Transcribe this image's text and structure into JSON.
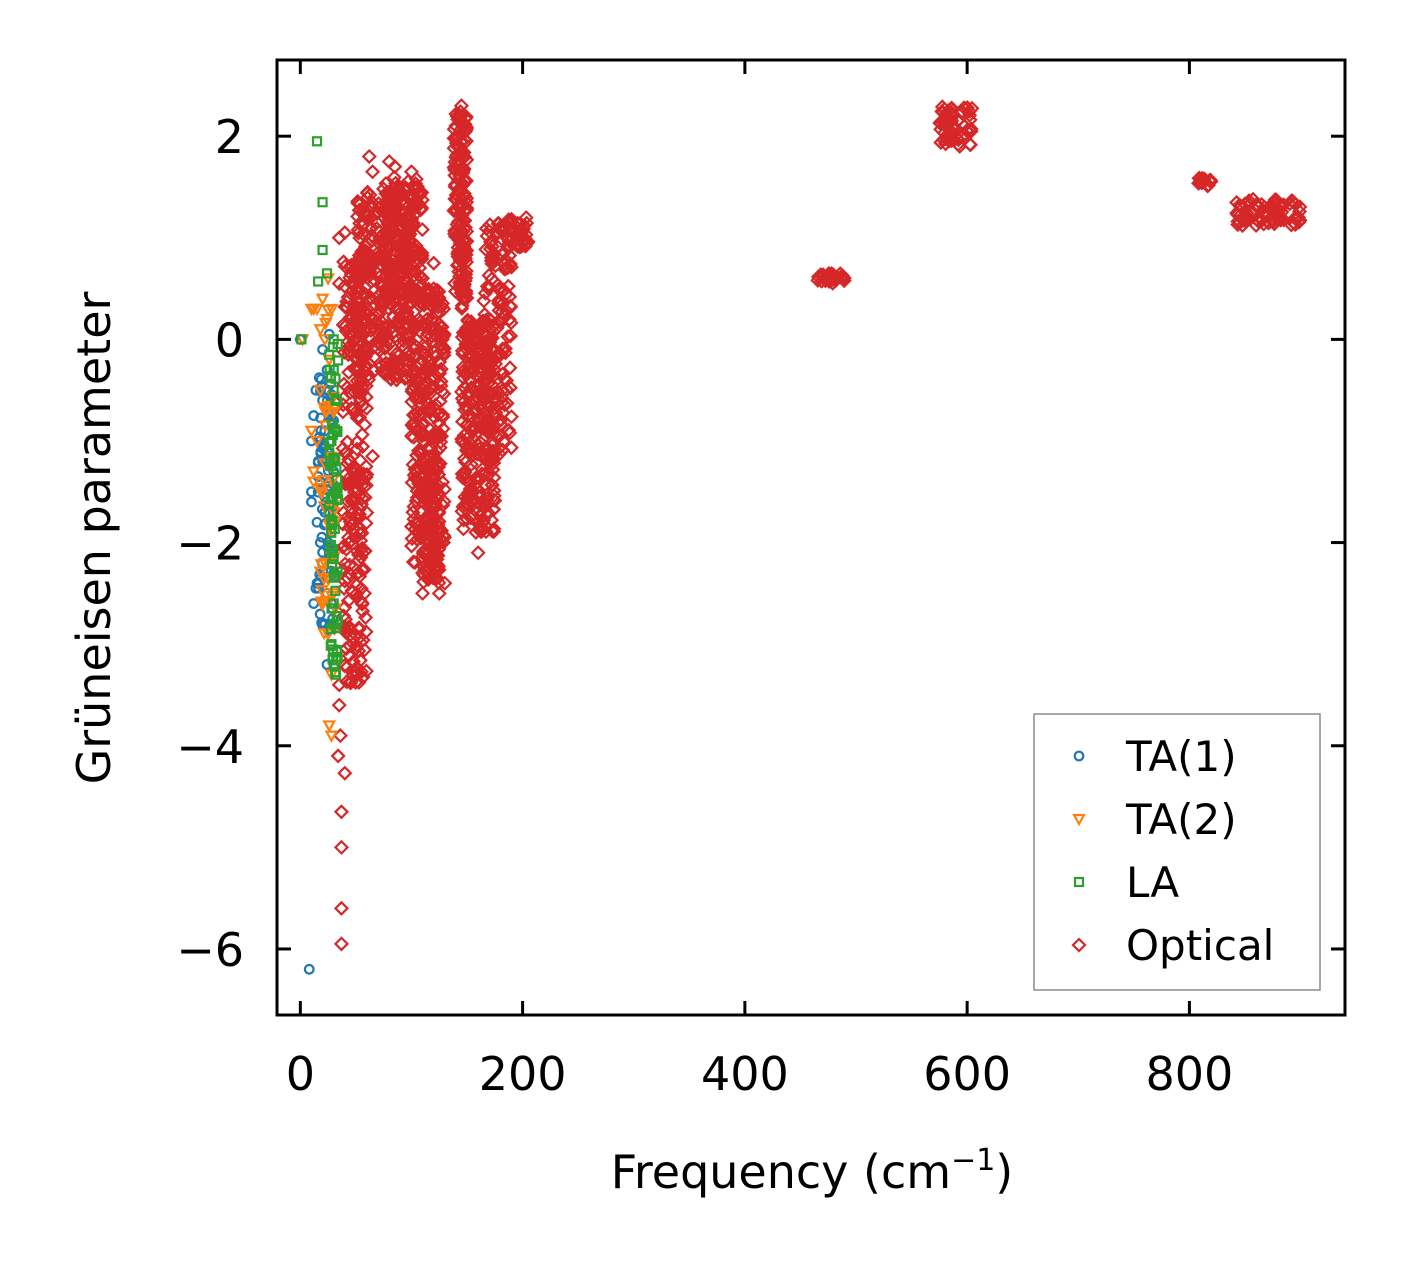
{
  "chart_data": {
    "type": "scatter",
    "xlabel": "Frequency (cm",
    "xlabel_sup": "−1",
    "xlabel_close": ")",
    "ylabel": "Grüneisen parameter",
    "xlim": [
      -21,
      940
    ],
    "ylim": [
      -6.65,
      2.75
    ],
    "xticks": [
      0,
      200,
      400,
      600,
      800
    ],
    "xtick_labels": [
      "0",
      "200",
      "400",
      "600",
      "800"
    ],
    "yticks": [
      2,
      0,
      -2,
      -4,
      -6
    ],
    "ytick_labels": [
      "2",
      "0",
      "−2",
      "−4",
      "−6"
    ],
    "legend_position": "lower-right",
    "series": [
      {
        "name": "TA(1)",
        "label": "TA(1)",
        "marker": "circle",
        "color": "#1f77b4",
        "points": [
          [
            0,
            0
          ],
          [
            8,
            -6.2
          ],
          [
            10,
            -1.5
          ],
          [
            10,
            -1.6
          ],
          [
            12,
            -2.6
          ],
          [
            12,
            -0.75
          ],
          [
            10,
            -1.0
          ],
          [
            14,
            -0.5
          ],
          [
            15,
            -1.8
          ],
          [
            15,
            -2.4
          ],
          [
            18,
            -1.0
          ],
          [
            18,
            -1.4
          ],
          [
            18,
            -2.0
          ],
          [
            20,
            -0.1
          ],
          [
            20,
            -0.6
          ],
          [
            20,
            -1.2
          ],
          [
            20,
            -2.2
          ],
          [
            22,
            -0.9
          ],
          [
            22,
            -1.7
          ],
          [
            22,
            -2.8
          ],
          [
            24,
            -0.3
          ],
          [
            24,
            -1.1
          ],
          [
            24,
            -2.5
          ],
          [
            24,
            -3.2
          ],
          [
            26,
            0.05
          ],
          [
            26,
            -0.7
          ],
          [
            26,
            -1.4
          ],
          [
            26,
            -2.1
          ],
          [
            28,
            -1.9
          ],
          [
            28,
            -2.6
          ],
          [
            30,
            -0.8
          ],
          [
            30,
            -1.3
          ],
          [
            30,
            -2.3
          ],
          [
            14,
            -2.45
          ],
          [
            16,
            -1.35
          ],
          [
            22,
            -1.55
          ],
          [
            25,
            -2.0
          ],
          [
            27,
            -1.0
          ]
        ],
        "bands": [
          {
            "x": [
              16,
              30
            ],
            "y": [
              -2.9,
              -0.3
            ],
            "n": 60
          }
        ]
      },
      {
        "name": "TA(2)",
        "label": "TA(2)",
        "marker": "triangle-down",
        "color": "#ff7f0e",
        "points": [
          [
            2,
            0
          ],
          [
            10,
            0.3
          ],
          [
            12,
            0.3
          ],
          [
            15,
            0.3
          ],
          [
            18,
            0.1
          ],
          [
            20,
            0.4
          ],
          [
            22,
            0.0
          ],
          [
            24,
            0.2
          ],
          [
            25,
            0.6
          ],
          [
            26,
            -0.2
          ],
          [
            10,
            -0.9
          ],
          [
            12,
            -1.3
          ],
          [
            12,
            -1.4
          ],
          [
            15,
            -1.0
          ],
          [
            20,
            -1.5
          ],
          [
            22,
            -2.2
          ],
          [
            25,
            -2.9
          ],
          [
            26,
            -3.8
          ],
          [
            28,
            -3.9
          ],
          [
            28,
            -3.3
          ],
          [
            30,
            -1.7
          ],
          [
            30,
            -2.5
          ],
          [
            18,
            -0.5
          ],
          [
            24,
            -0.7
          ]
        ],
        "bands": [
          {
            "x": [
              18,
              32
            ],
            "y": [
              -3.0,
              0.3
            ],
            "n": 40
          }
        ]
      },
      {
        "name": "LA",
        "label": "LA",
        "marker": "square",
        "color": "#2ca02c",
        "points": [
          [
            1,
            0
          ],
          [
            15,
            1.95
          ],
          [
            20,
            1.35
          ],
          [
            20,
            0.88
          ],
          [
            16,
            0.57
          ],
          [
            24,
            0.65
          ],
          [
            30,
            0.0
          ],
          [
            30,
            -0.3
          ],
          [
            32,
            -0.6
          ],
          [
            28,
            -1.0
          ],
          [
            30,
            -1.2
          ],
          [
            32,
            -1.5
          ],
          [
            28,
            -2.1
          ],
          [
            30,
            -2.6
          ],
          [
            30,
            -2.8
          ],
          [
            28,
            -3.0
          ],
          [
            30,
            -3.2
          ],
          [
            32,
            -3.3
          ],
          [
            26,
            -0.15
          ],
          [
            30,
            -0.5
          ]
        ],
        "bands": [
          {
            "x": [
              26,
              34
            ],
            "y": [
              -3.3,
              0.0
            ],
            "n": 60
          }
        ]
      },
      {
        "name": "Optical",
        "label": "Optical",
        "marker": "diamond",
        "color": "#d62728",
        "points": [
          [
            35,
            1.0
          ],
          [
            40,
            1.05
          ],
          [
            62,
            1.8
          ],
          [
            65,
            1.65
          ],
          [
            80,
            1.75
          ],
          [
            85,
            1.7
          ],
          [
            100,
            1.65
          ],
          [
            35,
            0.55
          ],
          [
            35,
            -3.4
          ],
          [
            35,
            -3.6
          ],
          [
            36,
            -3.9
          ],
          [
            34,
            -4.1
          ],
          [
            40,
            -4.27
          ],
          [
            37,
            -4.65
          ],
          [
            37,
            -5.0
          ],
          [
            37,
            -5.6
          ],
          [
            37,
            -5.95
          ],
          [
            65,
            -1.15
          ],
          [
            110,
            -2.3
          ],
          [
            110,
            -2.5
          ],
          [
            125,
            -2.5
          ],
          [
            145,
            2.3
          ],
          [
            145,
            2.2
          ],
          [
            140,
            2.1
          ],
          [
            160,
            -2.1
          ],
          [
            158,
            -1.9
          ],
          [
            130,
            -2.4
          ],
          [
            120,
            0.75
          ]
        ],
        "bands": [
          {
            "x": [
              38,
              60
            ],
            "y": [
              -3.4,
              0.8
            ],
            "n": 260
          },
          {
            "x": [
              50,
              100
            ],
            "y": [
              -0.4,
              1.5
            ],
            "n": 340
          },
          {
            "x": [
              75,
              110
            ],
            "y": [
              0.4,
              1.6
            ],
            "n": 180
          },
          {
            "x": [
              100,
              130
            ],
            "y": [
              -2.2,
              0.5
            ],
            "n": 320
          },
          {
            "x": [
              110,
              125
            ],
            "y": [
              -2.4,
              -1.2
            ],
            "n": 80
          },
          {
            "x": [
              138,
              150
            ],
            "y": [
              0.3,
              2.25
            ],
            "n": 160
          },
          {
            "x": [
              145,
              175
            ],
            "y": [
              -1.9,
              0.2
            ],
            "n": 260
          },
          {
            "x": [
              165,
              190
            ],
            "y": [
              -1.2,
              1.15
            ],
            "n": 160
          },
          {
            "x": [
              185,
              205
            ],
            "y": [
              0.9,
              1.2
            ],
            "n": 40
          },
          {
            "x": [
              465,
              490
            ],
            "y": [
              0.55,
              0.65
            ],
            "n": 30
          },
          {
            "x": [
              575,
              605
            ],
            "y": [
              1.9,
              2.3
            ],
            "n": 60
          },
          {
            "x": [
              808,
              822
            ],
            "y": [
              1.5,
              1.6
            ],
            "n": 16
          },
          {
            "x": [
              842,
              900
            ],
            "y": [
              1.12,
              1.38
            ],
            "n": 80
          }
        ]
      }
    ]
  }
}
